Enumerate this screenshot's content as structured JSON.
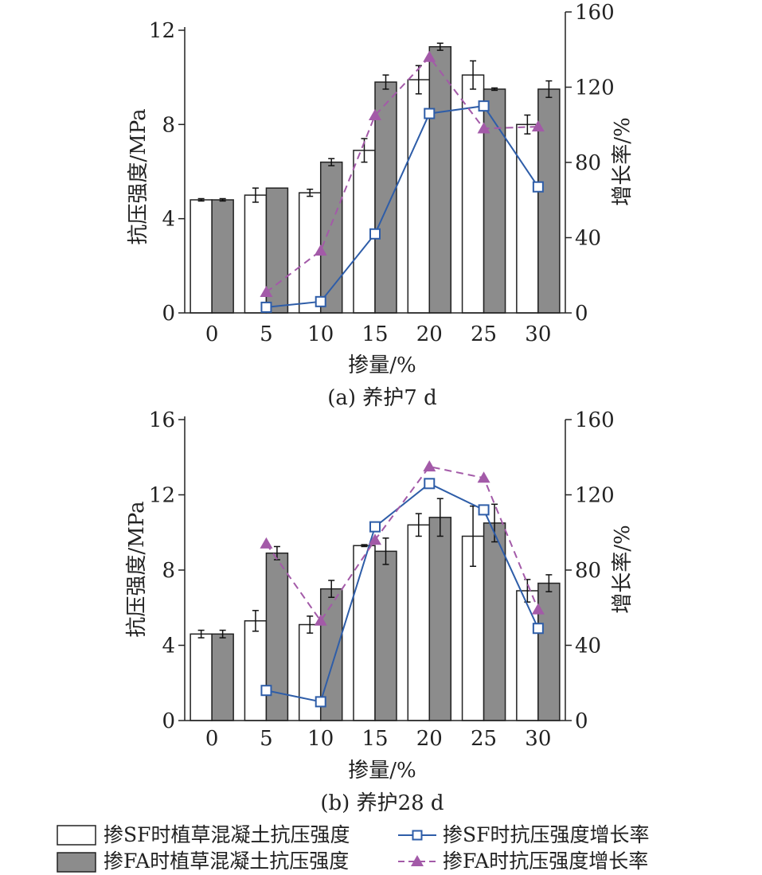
{
  "chart_data": [
    {
      "type": "bar",
      "caption": "(a) 养护7 d",
      "xlabel": "掺量/%",
      "ylabel": "抗压强度/MPa",
      "y2label": "增长率/%",
      "categories": [
        "0",
        "5",
        "10",
        "15",
        "20",
        "25",
        "30"
      ],
      "ylim": [
        0,
        12
      ],
      "yticks": [
        0,
        4,
        8,
        12
      ],
      "y2lim": [
        0,
        160
      ],
      "y2ticks": [
        0,
        40,
        80,
        120,
        160
      ],
      "series": [
        {
          "name": "掺SF时植草混凝土抗压强度",
          "kind": "bar",
          "axis": "left",
          "fill": "#ffffff",
          "values": [
            4.8,
            5.0,
            5.1,
            6.9,
            9.9,
            10.1,
            8.0
          ],
          "errors": [
            0.05,
            0.3,
            0.15,
            0.5,
            0.6,
            0.6,
            0.4
          ]
        },
        {
          "name": "掺FA时植草混凝土抗压强度",
          "kind": "bar",
          "axis": "left",
          "fill": "#8c8c8c",
          "values": [
            4.8,
            5.3,
            6.4,
            9.8,
            11.3,
            9.5,
            9.5
          ],
          "errors": [
            0.05,
            0.0,
            0.15,
            0.3,
            0.15,
            0.05,
            0.35
          ]
        },
        {
          "name": "掺SF时抗压强度增长率",
          "kind": "line",
          "axis": "right",
          "color": "#2e5da8",
          "marker": "square",
          "x": [
            "5",
            "10",
            "15",
            "20",
            "25",
            "30"
          ],
          "values": [
            3,
            6,
            42,
            106,
            110,
            67
          ]
        },
        {
          "name": "掺FA时抗压强度增长率",
          "kind": "line",
          "axis": "right",
          "color": "#a35aa8",
          "marker": "triangle",
          "dash": true,
          "x": [
            "5",
            "10",
            "15",
            "20",
            "25",
            "30"
          ],
          "values": [
            11,
            33,
            105,
            136,
            98,
            99
          ]
        }
      ]
    },
    {
      "type": "bar",
      "caption": "(b) 养护28 d",
      "xlabel": "掺量/%",
      "ylabel": "抗压强度/MPa",
      "y2label": "增长率/%",
      "categories": [
        "0",
        "5",
        "10",
        "15",
        "20",
        "25",
        "30"
      ],
      "ylim": [
        0,
        16
      ],
      "yticks": [
        0,
        4,
        8,
        12,
        16
      ],
      "y2lim": [
        0,
        160
      ],
      "y2ticks": [
        0,
        40,
        80,
        120,
        160
      ],
      "series": [
        {
          "name": "掺SF时植草混凝土抗压强度",
          "kind": "bar",
          "axis": "left",
          "fill": "#ffffff",
          "values": [
            4.6,
            5.3,
            5.1,
            9.3,
            10.4,
            9.8,
            6.9
          ],
          "errors": [
            0.2,
            0.55,
            0.45,
            0.05,
            0.6,
            1.6,
            0.6
          ]
        },
        {
          "name": "掺FA时植草混凝土抗压强度",
          "kind": "bar",
          "axis": "left",
          "fill": "#8c8c8c",
          "values": [
            4.6,
            8.9,
            7.0,
            9.0,
            10.8,
            10.5,
            7.3
          ],
          "errors": [
            0.2,
            0.35,
            0.45,
            0.7,
            1.0,
            1.0,
            0.45
          ]
        },
        {
          "name": "掺SF时抗压强度增长率",
          "kind": "line",
          "axis": "right",
          "color": "#2e5da8",
          "marker": "square",
          "x": [
            "5",
            "10",
            "15",
            "20",
            "25",
            "30"
          ],
          "values": [
            16,
            10,
            103,
            126,
            112,
            49
          ]
        },
        {
          "name": "掺FA时抗压强度增长率",
          "kind": "line",
          "axis": "right",
          "color": "#a35aa8",
          "marker": "triangle",
          "dash": true,
          "x": [
            "5",
            "10",
            "15",
            "20",
            "25",
            "30"
          ],
          "values": [
            94,
            53,
            96,
            135,
            129,
            59
          ]
        }
      ]
    }
  ],
  "legend": [
    {
      "label": "掺SF时植草混凝土抗压强度",
      "kind": "bar",
      "fill": "#ffffff"
    },
    {
      "label": "掺SF时抗压强度增长率",
      "kind": "line",
      "color": "#2e5da8",
      "marker": "square"
    },
    {
      "label": "掺FA时植草混凝土抗压强度",
      "kind": "bar",
      "fill": "#8c8c8c"
    },
    {
      "label": "掺FA时抗压强度增长率",
      "kind": "line",
      "color": "#a35aa8",
      "marker": "triangle",
      "dash": true
    }
  ]
}
